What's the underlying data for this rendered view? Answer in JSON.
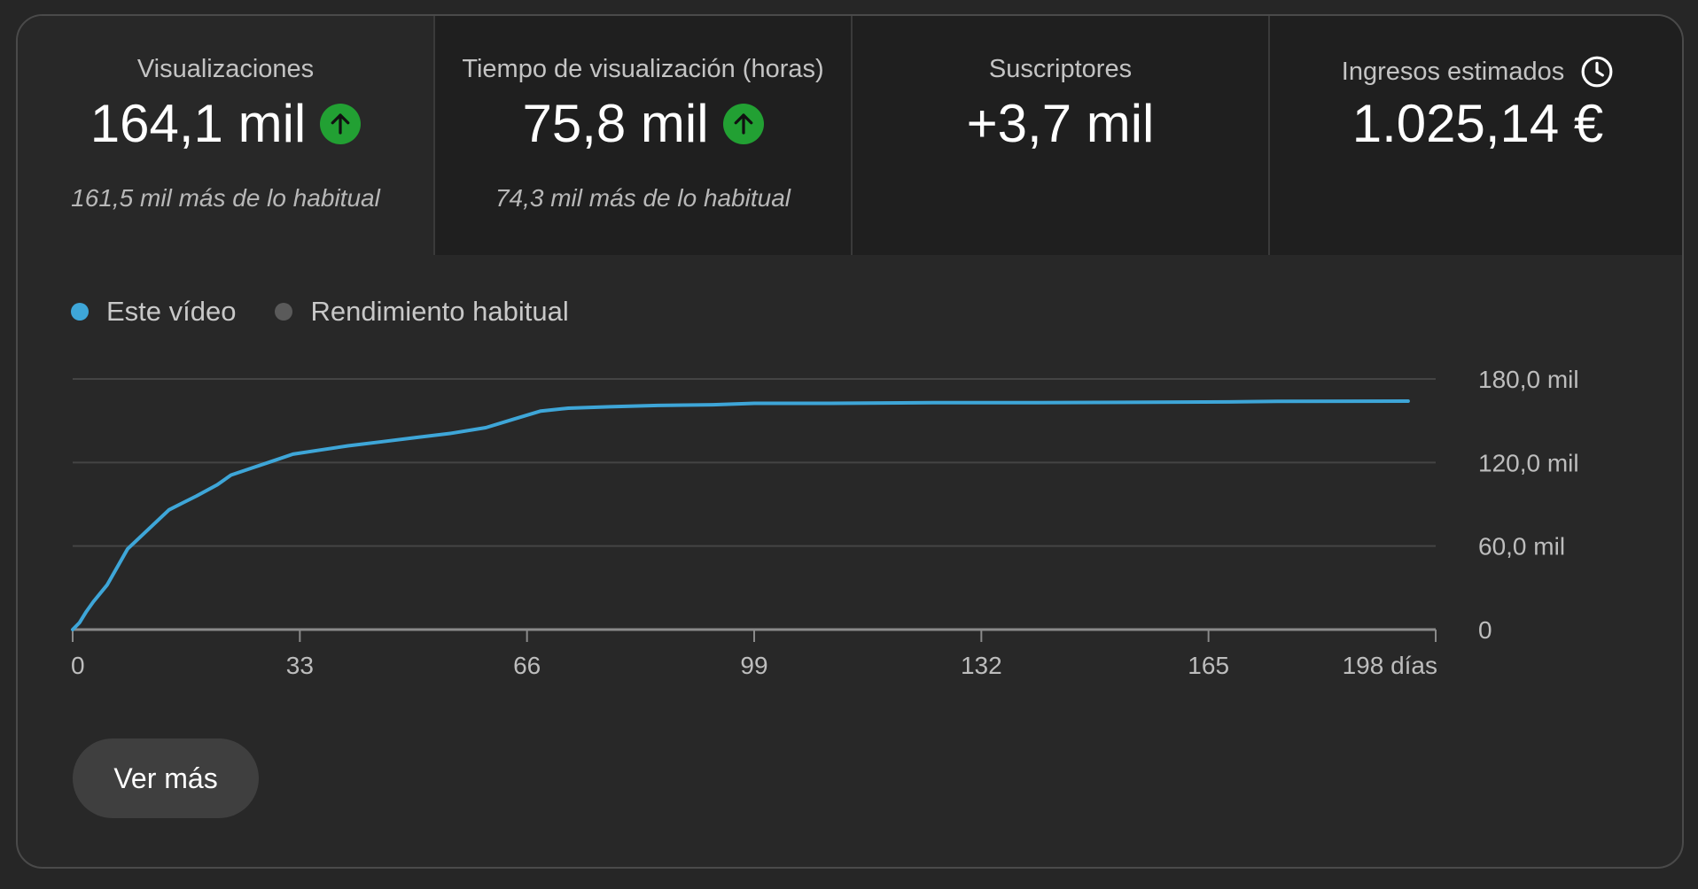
{
  "metrics": [
    {
      "title": "Visualizaciones",
      "value": "164,1 mil",
      "sub": "161,5 mil más de lo habitual",
      "trend": "up-arrow-icon"
    },
    {
      "title": "Tiempo de visualización (horas)",
      "value": "75,8 mil",
      "sub": "74,3 mil más de lo habitual",
      "trend": "up-arrow-icon"
    },
    {
      "title": "Suscriptores",
      "value": "+3,7 mil",
      "sub": ""
    },
    {
      "title": "Ingresos estimados",
      "value": "1.025,14 €",
      "sub": "",
      "icon": "clock-icon"
    }
  ],
  "legend": {
    "this_video": "Este vídeo",
    "typical": "Rendimiento habitual",
    "this_video_color": "#3ea6d8",
    "typical_color": "#5a5a5a"
  },
  "chart_data": {
    "type": "line",
    "x_unit": "días",
    "xlim": [
      0,
      198
    ],
    "ylim": [
      0,
      180000
    ],
    "x_ticks": [
      "0",
      "33",
      "66",
      "99",
      "132",
      "165",
      "198 días"
    ],
    "y_ticks": [
      "0",
      "60,0 mil",
      "120,0 mil",
      "180,0 mil"
    ],
    "series": [
      {
        "name": "Este vídeo",
        "color": "#3ea6d8",
        "x": [
          0,
          1,
          2,
          3,
          5,
          8,
          11,
          14,
          16,
          18,
          21,
          23,
          26,
          29,
          32,
          36,
          40,
          45,
          50,
          55,
          60,
          64,
          68,
          72,
          78,
          85,
          93,
          99,
          110,
          125,
          140,
          168,
          175,
          194
        ],
        "y": [
          0,
          5000,
          13000,
          20000,
          32000,
          58000,
          72000,
          86000,
          91000,
          96000,
          104000,
          111000,
          116000,
          121000,
          126000,
          129000,
          132000,
          135000,
          138000,
          141000,
          145000,
          151000,
          157000,
          159000,
          160000,
          161000,
          161500,
          162500,
          162500,
          163000,
          163000,
          163500,
          164000,
          164100
        ]
      }
    ]
  },
  "buttons": {
    "more": "Ver más"
  }
}
